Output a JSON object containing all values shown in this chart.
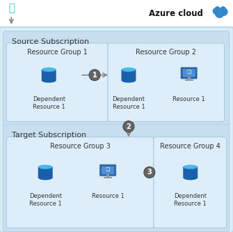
{
  "title": "Azure cloud",
  "bg_outer": "#daedf8",
  "bg_sub": "#c8dff0",
  "bg_rg": "#ddeefa",
  "border_outer": "#b8d4e8",
  "border_rg": "#aacce0",
  "source_sub_label": "Source Subscription",
  "target_sub_label": "Target Subscription",
  "rg1_label": "Resource Group 1",
  "rg2_label": "Resource Group 2",
  "rg3_label": "Resource Group 3",
  "rg4_label": "Resource Group 4",
  "dep_res_label": "Dependent\nResource 1",
  "res1_label": "Resource 1",
  "step_bg": "#666666",
  "arrow_color": "#888888",
  "text_color": "#333333",
  "cyl_body": "#1a5faa",
  "cyl_top": "#4db8e8",
  "cyl_mid": "#1e7ec8",
  "mon_body": "#2060b0",
  "mon_screen": "#5090d0",
  "mon_stand": "#999999"
}
